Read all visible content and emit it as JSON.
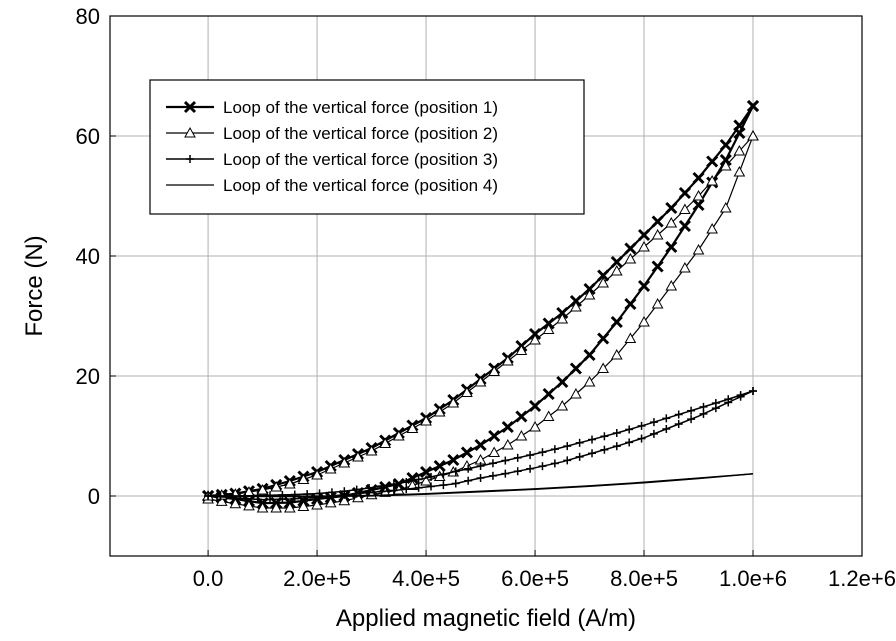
{
  "chart_data": {
    "type": "line",
    "title": "",
    "xlabel": "Applied magnetic field (A/m)",
    "ylabel": "Force (N)",
    "xlim": [
      -180000,
      1200000
    ],
    "ylim": [
      -10,
      80
    ],
    "x_ticks": [
      0,
      200000,
      400000,
      600000,
      800000,
      1000000,
      1200000
    ],
    "x_tick_labels": [
      "0.0",
      "2.0e+5",
      "4.0e+5",
      "6.0e+5",
      "8.0e+5",
      "1.0e+6",
      "1.2e+6"
    ],
    "y_ticks": [
      0,
      20,
      40,
      60,
      80
    ],
    "y_tick_labels": [
      "0",
      "20",
      "40",
      "60",
      "80"
    ],
    "grid": true,
    "legend_position": "top-left",
    "series": [
      {
        "name": "Loop of the vertical force (position 1)",
        "marker": "x",
        "ascending": {
          "x": [
            0,
            50000,
            100000,
            150000,
            200000,
            250000,
            300000,
            350000,
            400000,
            450000,
            500000,
            550000,
            600000,
            650000,
            700000,
            750000,
            800000,
            850000,
            900000,
            950000,
            1000000
          ],
          "y": [
            0,
            -0.5,
            -1.2,
            -1.1,
            -0.5,
            0,
            1,
            2,
            4,
            6,
            8.5,
            11.5,
            15,
            19,
            23.5,
            29,
            35,
            41.5,
            48.5,
            56,
            65
          ]
        },
        "descending": {
          "x": [
            1000000,
            950000,
            900000,
            850000,
            800000,
            750000,
            700000,
            650000,
            600000,
            550000,
            500000,
            450000,
            400000,
            350000,
            300000,
            250000,
            200000,
            150000,
            100000,
            50000,
            0
          ],
          "y": [
            65,
            58.5,
            53,
            48,
            43.5,
            39,
            34.5,
            30.5,
            27,
            23,
            19.5,
            16,
            13,
            10.5,
            8,
            6,
            4,
            2.5,
            1.2,
            0.4,
            0
          ]
        }
      },
      {
        "name": "Loop of the vertical force (position 2)",
        "marker": "triangle",
        "ascending": {
          "x": [
            0,
            50000,
            100000,
            150000,
            200000,
            250000,
            300000,
            350000,
            400000,
            450000,
            500000,
            550000,
            600000,
            650000,
            700000,
            750000,
            800000,
            850000,
            900000,
            950000,
            1000000
          ],
          "y": [
            -0.5,
            -1.3,
            -2,
            -2,
            -1.5,
            -0.8,
            0.2,
            1,
            2.5,
            4,
            6,
            8.5,
            11.5,
            15,
            19,
            23.5,
            29,
            35,
            41,
            48,
            60
          ]
        },
        "descending": {
          "x": [
            1000000,
            950000,
            900000,
            850000,
            800000,
            750000,
            700000,
            650000,
            600000,
            550000,
            500000,
            450000,
            400000,
            350000,
            300000,
            250000,
            200000,
            150000,
            100000,
            50000,
            0
          ],
          "y": [
            60,
            55,
            50,
            45.5,
            41.5,
            37.5,
            33.5,
            29.5,
            26,
            22.5,
            19,
            15.5,
            12.5,
            10,
            7.5,
            5.5,
            3.5,
            2,
            1,
            0.3,
            0
          ]
        }
      },
      {
        "name": "Loop of the vertical force (position 3)",
        "marker": "plus",
        "ascending": {
          "x": [
            0,
            50000,
            100000,
            150000,
            200000,
            250000,
            300000,
            350000,
            400000,
            450000,
            500000,
            550000,
            600000,
            650000,
            700000,
            750000,
            800000,
            850000,
            900000,
            950000,
            1000000
          ],
          "y": [
            0,
            -0.3,
            -0.6,
            -0.5,
            -0.2,
            0.2,
            0.6,
            1,
            1.5,
            2,
            3,
            3.8,
            4.7,
            5.7,
            7,
            8.3,
            9.7,
            11.5,
            13.3,
            15.4,
            17.5
          ]
        },
        "descending": {
          "x": [
            1000000,
            950000,
            900000,
            850000,
            800000,
            750000,
            700000,
            650000,
            600000,
            550000,
            500000,
            450000,
            400000,
            350000,
            300000,
            250000,
            200000,
            150000,
            100000,
            50000,
            0
          ],
          "y": [
            17.5,
            16,
            14.6,
            13.2,
            11.8,
            10.5,
            9.3,
            8.1,
            7,
            6,
            5,
            4,
            3,
            2.1,
            1.4,
            0.8,
            0.4,
            0.2,
            0.1,
            0,
            0
          ]
        }
      },
      {
        "name": "Loop of the vertical force (position 4)",
        "marker": "none",
        "ascending": {
          "x": [
            0,
            100000,
            200000,
            300000,
            400000,
            500000,
            600000,
            700000,
            800000,
            900000,
            1000000
          ],
          "y": [
            0,
            -0.1,
            -0.1,
            0,
            0.3,
            0.7,
            1.1,
            1.6,
            2.2,
            2.9,
            3.7
          ]
        },
        "descending": {
          "x": [
            1000000,
            900000,
            800000,
            700000,
            600000,
            500000,
            400000,
            300000,
            200000,
            100000,
            0
          ],
          "y": [
            3.7,
            3,
            2.3,
            1.7,
            1.2,
            0.8,
            0.4,
            0.1,
            0,
            0,
            0
          ]
        }
      }
    ]
  }
}
